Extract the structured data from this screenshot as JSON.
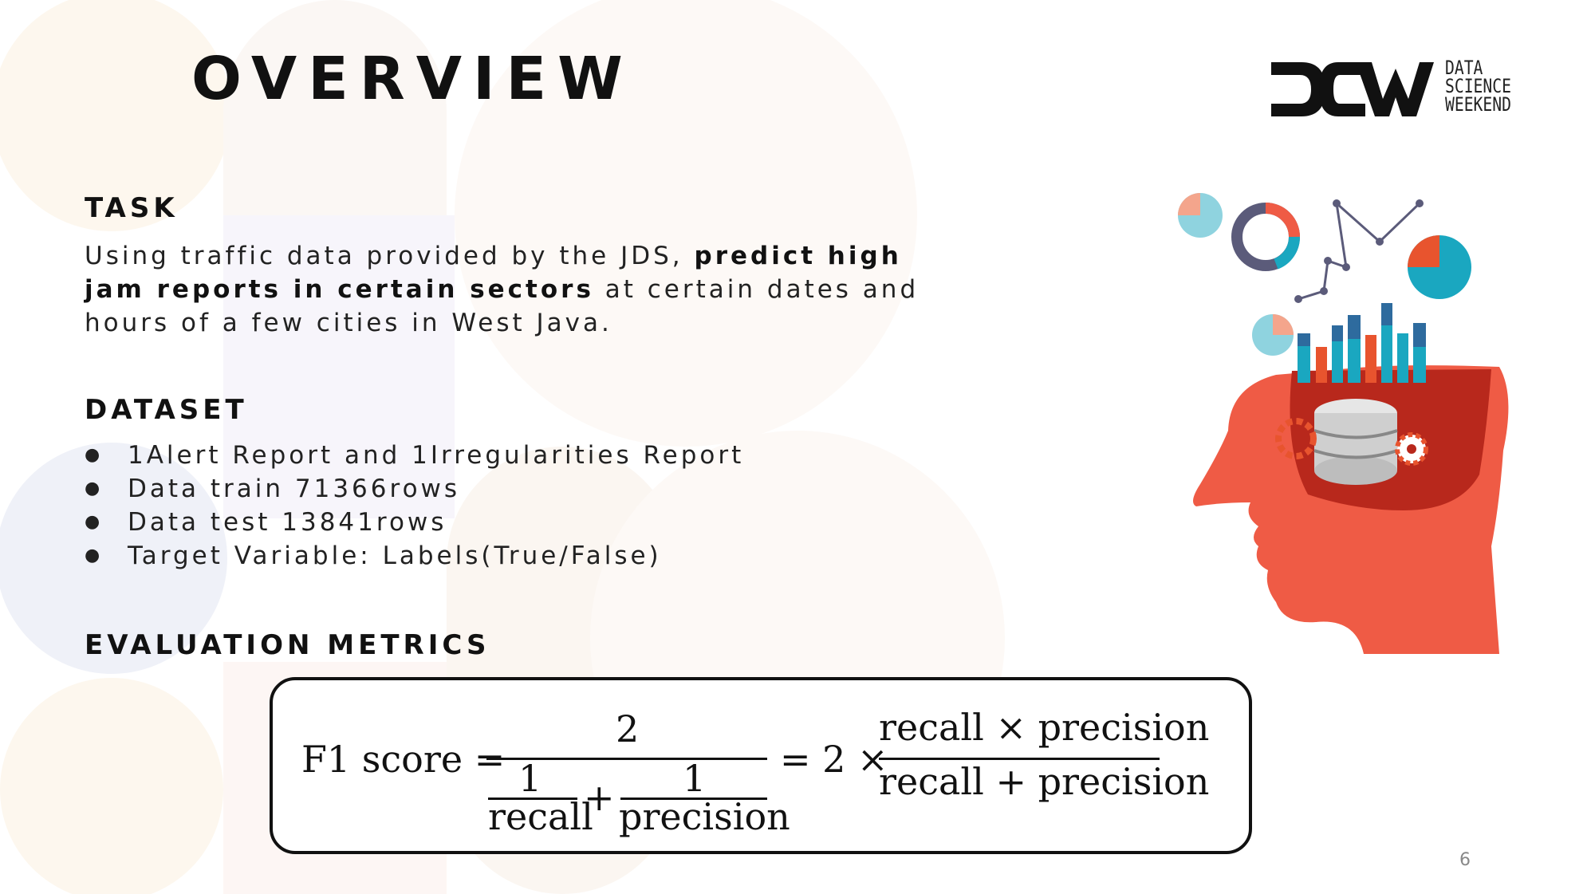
{
  "slide": {
    "title": "OVERVIEW",
    "page_number": "6"
  },
  "logo": {
    "mark": "DSW",
    "line1": "DATA",
    "line2": "SCIENCE",
    "line3": "WEEKEND"
  },
  "task": {
    "heading": "TASK",
    "text_before": "Using traffic data provided by the JDS, ",
    "text_bold": "predict high jam reports in certain sectors",
    "text_after": " at certain dates and hours of a few cities in West Java."
  },
  "dataset": {
    "heading": "DATASET",
    "bullet_glyph": "●",
    "items": [
      "1Alert Report and 1Irregularities Report",
      "Data train 71366rows",
      "Data test 13841rows",
      "Target Variable: Labels(True/False)"
    ]
  },
  "metrics": {
    "heading": "EVALUATION METRICS",
    "formula": {
      "lhs": "F1 score =",
      "numerator": "2",
      "one_a": "1",
      "recall": "recall",
      "plus": "+",
      "one_b": "1",
      "precision": "precision",
      "equals_two_times": "= 2 ×",
      "rhs_numerator": "recall × precision",
      "rhs_denominator": "recall + precision"
    }
  },
  "colors": {
    "head": "#ef5b45",
    "teal": "#1aa7c0",
    "navy": "#2e6b9e",
    "orange": "#e8542e",
    "purple": "#5b5b7a"
  }
}
